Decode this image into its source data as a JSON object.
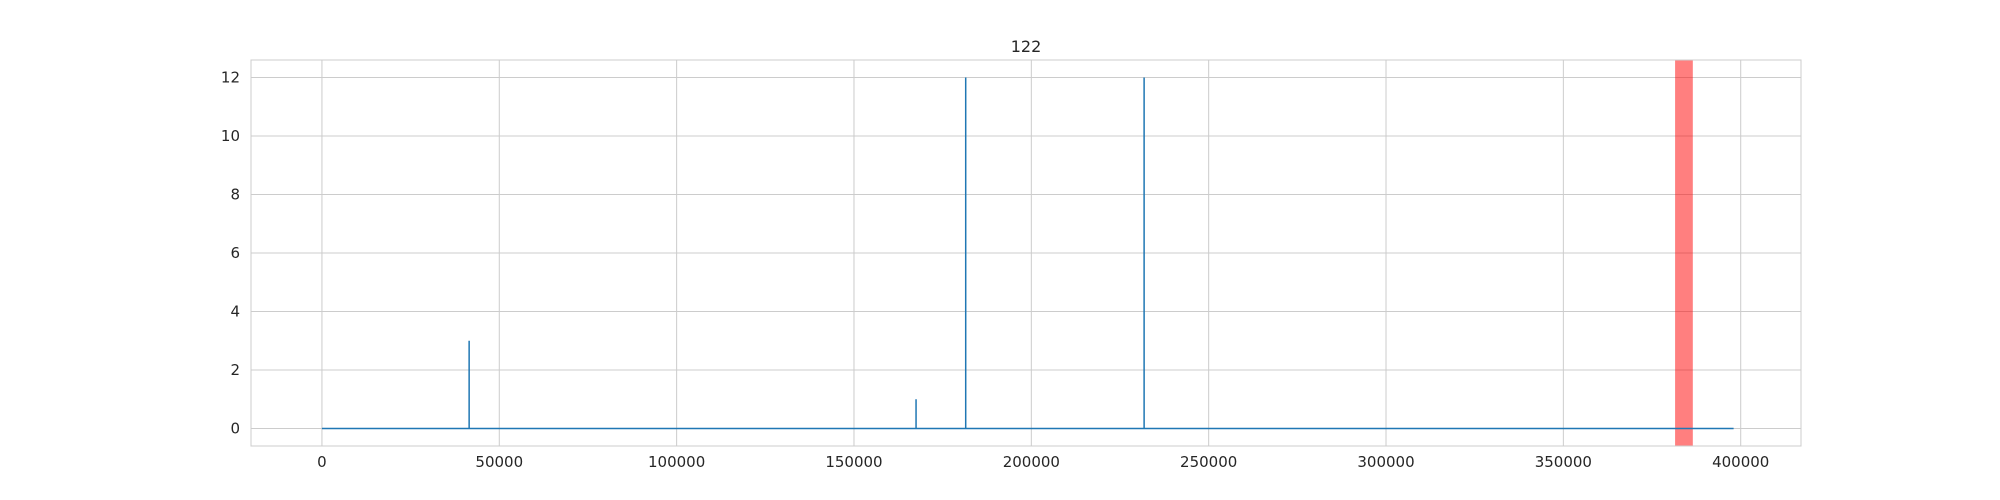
{
  "chart_data": {
    "type": "line",
    "title": "122",
    "xlabel": "",
    "ylabel": "",
    "xlim": [
      -20000,
      417000
    ],
    "ylim": [
      -0.6,
      12.6
    ],
    "xticks": [
      0,
      50000,
      100000,
      150000,
      200000,
      250000,
      300000,
      350000,
      400000
    ],
    "yticks": [
      0,
      2,
      4,
      6,
      8,
      10,
      12
    ],
    "grid": true,
    "series": [
      {
        "color": "#1f77b4",
        "x": [
          0,
          41500,
          41500,
          41500,
          167500,
          167500,
          167500,
          181500,
          181500,
          181500,
          231800,
          231800,
          231800,
          398000
        ],
        "y": [
          0,
          0,
          3,
          0,
          0,
          1,
          0,
          0,
          12,
          0,
          0,
          12,
          0,
          0
        ]
      }
    ],
    "highlight_span": {
      "x": [
        381500,
        386500
      ],
      "color": "#ff0000",
      "opacity": 0.5
    }
  }
}
